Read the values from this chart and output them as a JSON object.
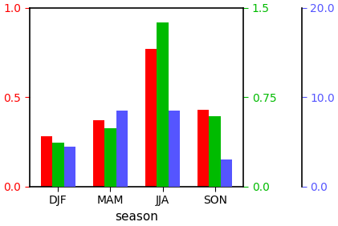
{
  "categories": [
    "DJF",
    "MAM",
    "JJA",
    "SON"
  ],
  "red_values": [
    0.28,
    0.37,
    0.77,
    0.43
  ],
  "green_values": [
    0.37,
    0.49,
    1.38,
    0.59
  ],
  "blue_values": [
    4.5,
    8.5,
    8.5,
    3.0
  ],
  "red_ylim": [
    0.0,
    1.0
  ],
  "green_ylim": [
    0.0,
    1.5
  ],
  "blue_ylim": [
    0.0,
    20.0
  ],
  "red_yticks": [
    0.0,
    0.5,
    1.0
  ],
  "green_yticks": [
    0.0,
    0.75,
    1.5
  ],
  "blue_yticks": [
    0.0,
    10.0,
    20.0
  ],
  "red_color": "#ff0000",
  "green_color": "#00bb00",
  "blue_color": "#5555ff",
  "xlabel": "season",
  "bar_width": 0.22,
  "background_color": "#ffffff"
}
